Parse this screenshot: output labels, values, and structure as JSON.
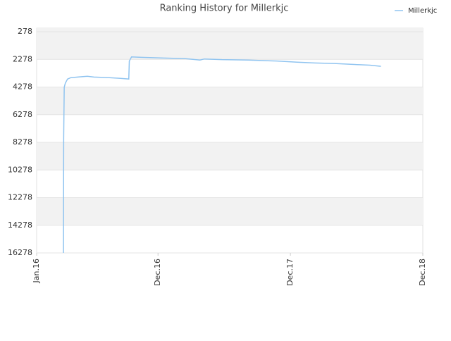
{
  "chart_data": {
    "type": "line",
    "title": "Ranking History for Millerkjc",
    "series": [
      {
        "name": "Millerkjc",
        "color": "#90c4f0",
        "x": [
          2.43,
          2.45,
          2.5,
          2.6,
          2.8,
          3.1,
          3.8,
          4.6,
          5.2,
          6.6,
          7.5,
          8.35,
          8.4,
          8.6,
          9.5,
          11.5,
          13.5,
          14.8,
          15.2,
          16.8,
          19.2,
          21.8,
          23.6,
          25.2,
          27.0,
          28.8,
          30.2,
          31.2
        ],
        "values": [
          16278,
          8000,
          4300,
          4000,
          3700,
          3600,
          3550,
          3500,
          3560,
          3600,
          3650,
          3700,
          2400,
          2100,
          2130,
          2180,
          2230,
          2330,
          2250,
          2300,
          2330,
          2400,
          2480,
          2540,
          2580,
          2650,
          2700,
          2780
        ]
      }
    ],
    "xlim": [
      0,
      35
    ],
    "xticks": [
      {
        "value": 0,
        "label": "Jan.16"
      },
      {
        "value": 11,
        "label": "Dec.16"
      },
      {
        "value": 23,
        "label": "Dec.17"
      },
      {
        "value": 35,
        "label": "Dec.18"
      }
    ],
    "ylim": [
      16278,
      278
    ],
    "yticks": [
      278,
      2278,
      4278,
      6278,
      8278,
      10278,
      12278,
      14278,
      16278
    ],
    "grid": true,
    "legend": "top-right"
  }
}
